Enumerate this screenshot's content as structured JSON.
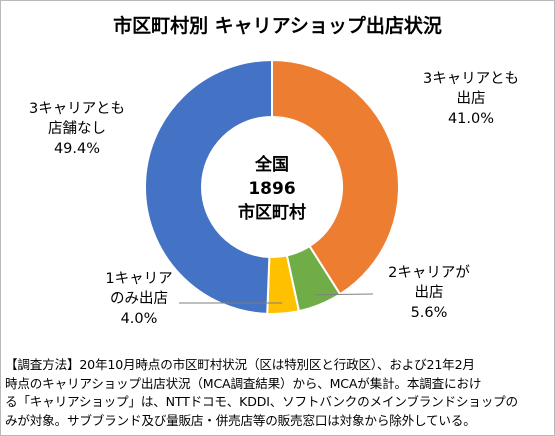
{
  "chart_data": {
    "type": "pie",
    "title": "市区町村別 キャリアショップ出店状況",
    "center_label": [
      "全国",
      "1896",
      "市区町村"
    ],
    "slices": [
      {
        "label": [
          "3キャリアとも",
          "出店"
        ],
        "value": 41.0,
        "value_label": "41.0%",
        "color": "#ED7D31"
      },
      {
        "label": [
          "2キャリアが",
          "出店"
        ],
        "value": 5.6,
        "value_label": "5.6%",
        "color": "#70AD47"
      },
      {
        "label": [
          "1キャリア",
          "のみ出店"
        ],
        "value": 4.0,
        "value_label": "4.0%",
        "color": "#FFC000"
      },
      {
        "label": [
          "3キャリアとも",
          "店舗なし"
        ],
        "value": 49.4,
        "value_label": "49.4%",
        "color": "#4472C4"
      }
    ],
    "start_angle": "12 o'clock",
    "direction": "clockwise",
    "legend": "none"
  },
  "footnote": [
    "【調査方法】20年10月時点の市区町村状況（区は特別区と行政区）、および21年2月",
    "時点のキャリアショップ出店状況（MCA調査結果）から、MCAが集計。本調査におけ",
    "る「キャリアショップ」は、NTTドコモ、KDDI、ソフトバンクのメインブランドショップの",
    "みが対象。サブブランド及び量販店・併売店等の販売窓口は対象から除外している。"
  ]
}
